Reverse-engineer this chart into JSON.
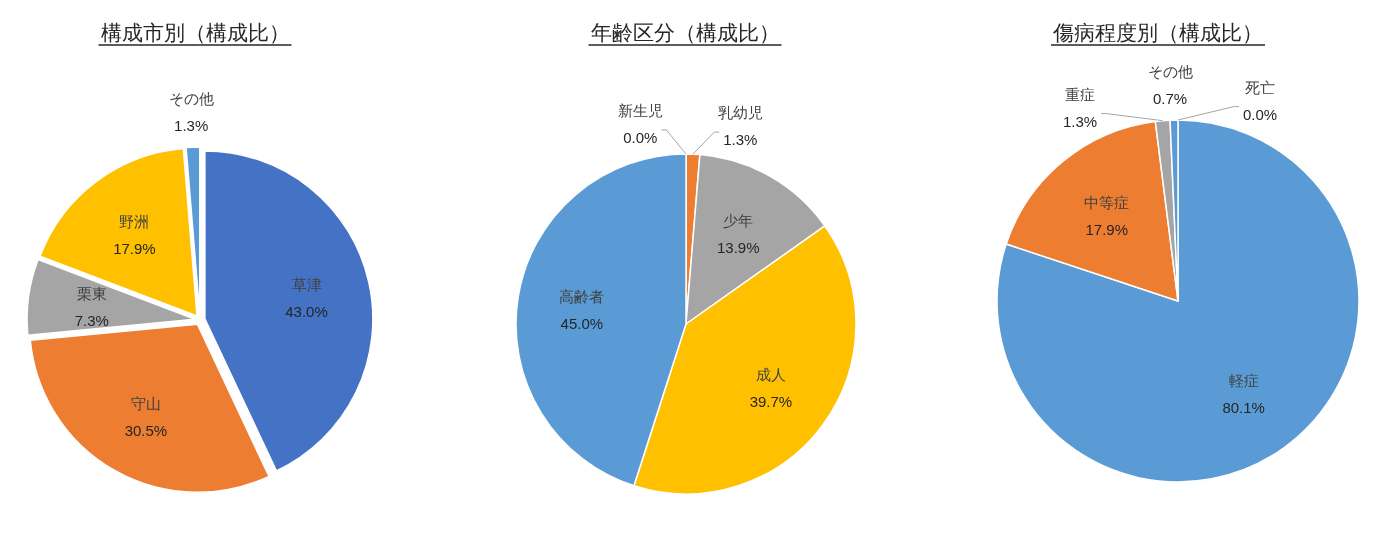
{
  "chart_data": [
    {
      "type": "pie",
      "title": "構成市別（構成比）",
      "categories": [
        "草津",
        "守山",
        "栗東",
        "野洲",
        "その他"
      ],
      "values": [
        43.0,
        30.5,
        7.3,
        17.9,
        1.3
      ],
      "value_labels": [
        "43.0%",
        "30.5%",
        "7.3%",
        "17.9%",
        "1.3%"
      ],
      "colors": [
        "#4472c4",
        "#ed7d31",
        "#a5a5a5",
        "#ffc000",
        "#5b9bd5"
      ]
    },
    {
      "type": "pie",
      "title": "年齢区分（構成比）",
      "categories": [
        "新生児",
        "乳幼児",
        "少年",
        "成人",
        "高齢者"
      ],
      "values": [
        0.0,
        1.3,
        13.9,
        39.7,
        45.0
      ],
      "value_labels": [
        "0.0%",
        "1.3%",
        "13.9%",
        "39.7%",
        "45.0%"
      ],
      "colors": [
        null,
        "#ed7d31",
        "#a5a5a5",
        "#ffc000",
        "#5b9bd5"
      ]
    },
    {
      "type": "pie",
      "title": "傷病程度別（構成比）",
      "categories": [
        "軽症",
        "中等症",
        "重症",
        "その他",
        "死亡"
      ],
      "values": [
        80.1,
        17.9,
        1.3,
        0.7,
        0.0
      ],
      "value_labels": [
        "80.1%",
        "17.9%",
        "1.3%",
        "0.7%",
        "0.0%"
      ],
      "colors": [
        "#5b9bd5",
        "#ed7d31",
        "#a5a5a5",
        "#5b9bd5",
        null
      ]
    }
  ]
}
